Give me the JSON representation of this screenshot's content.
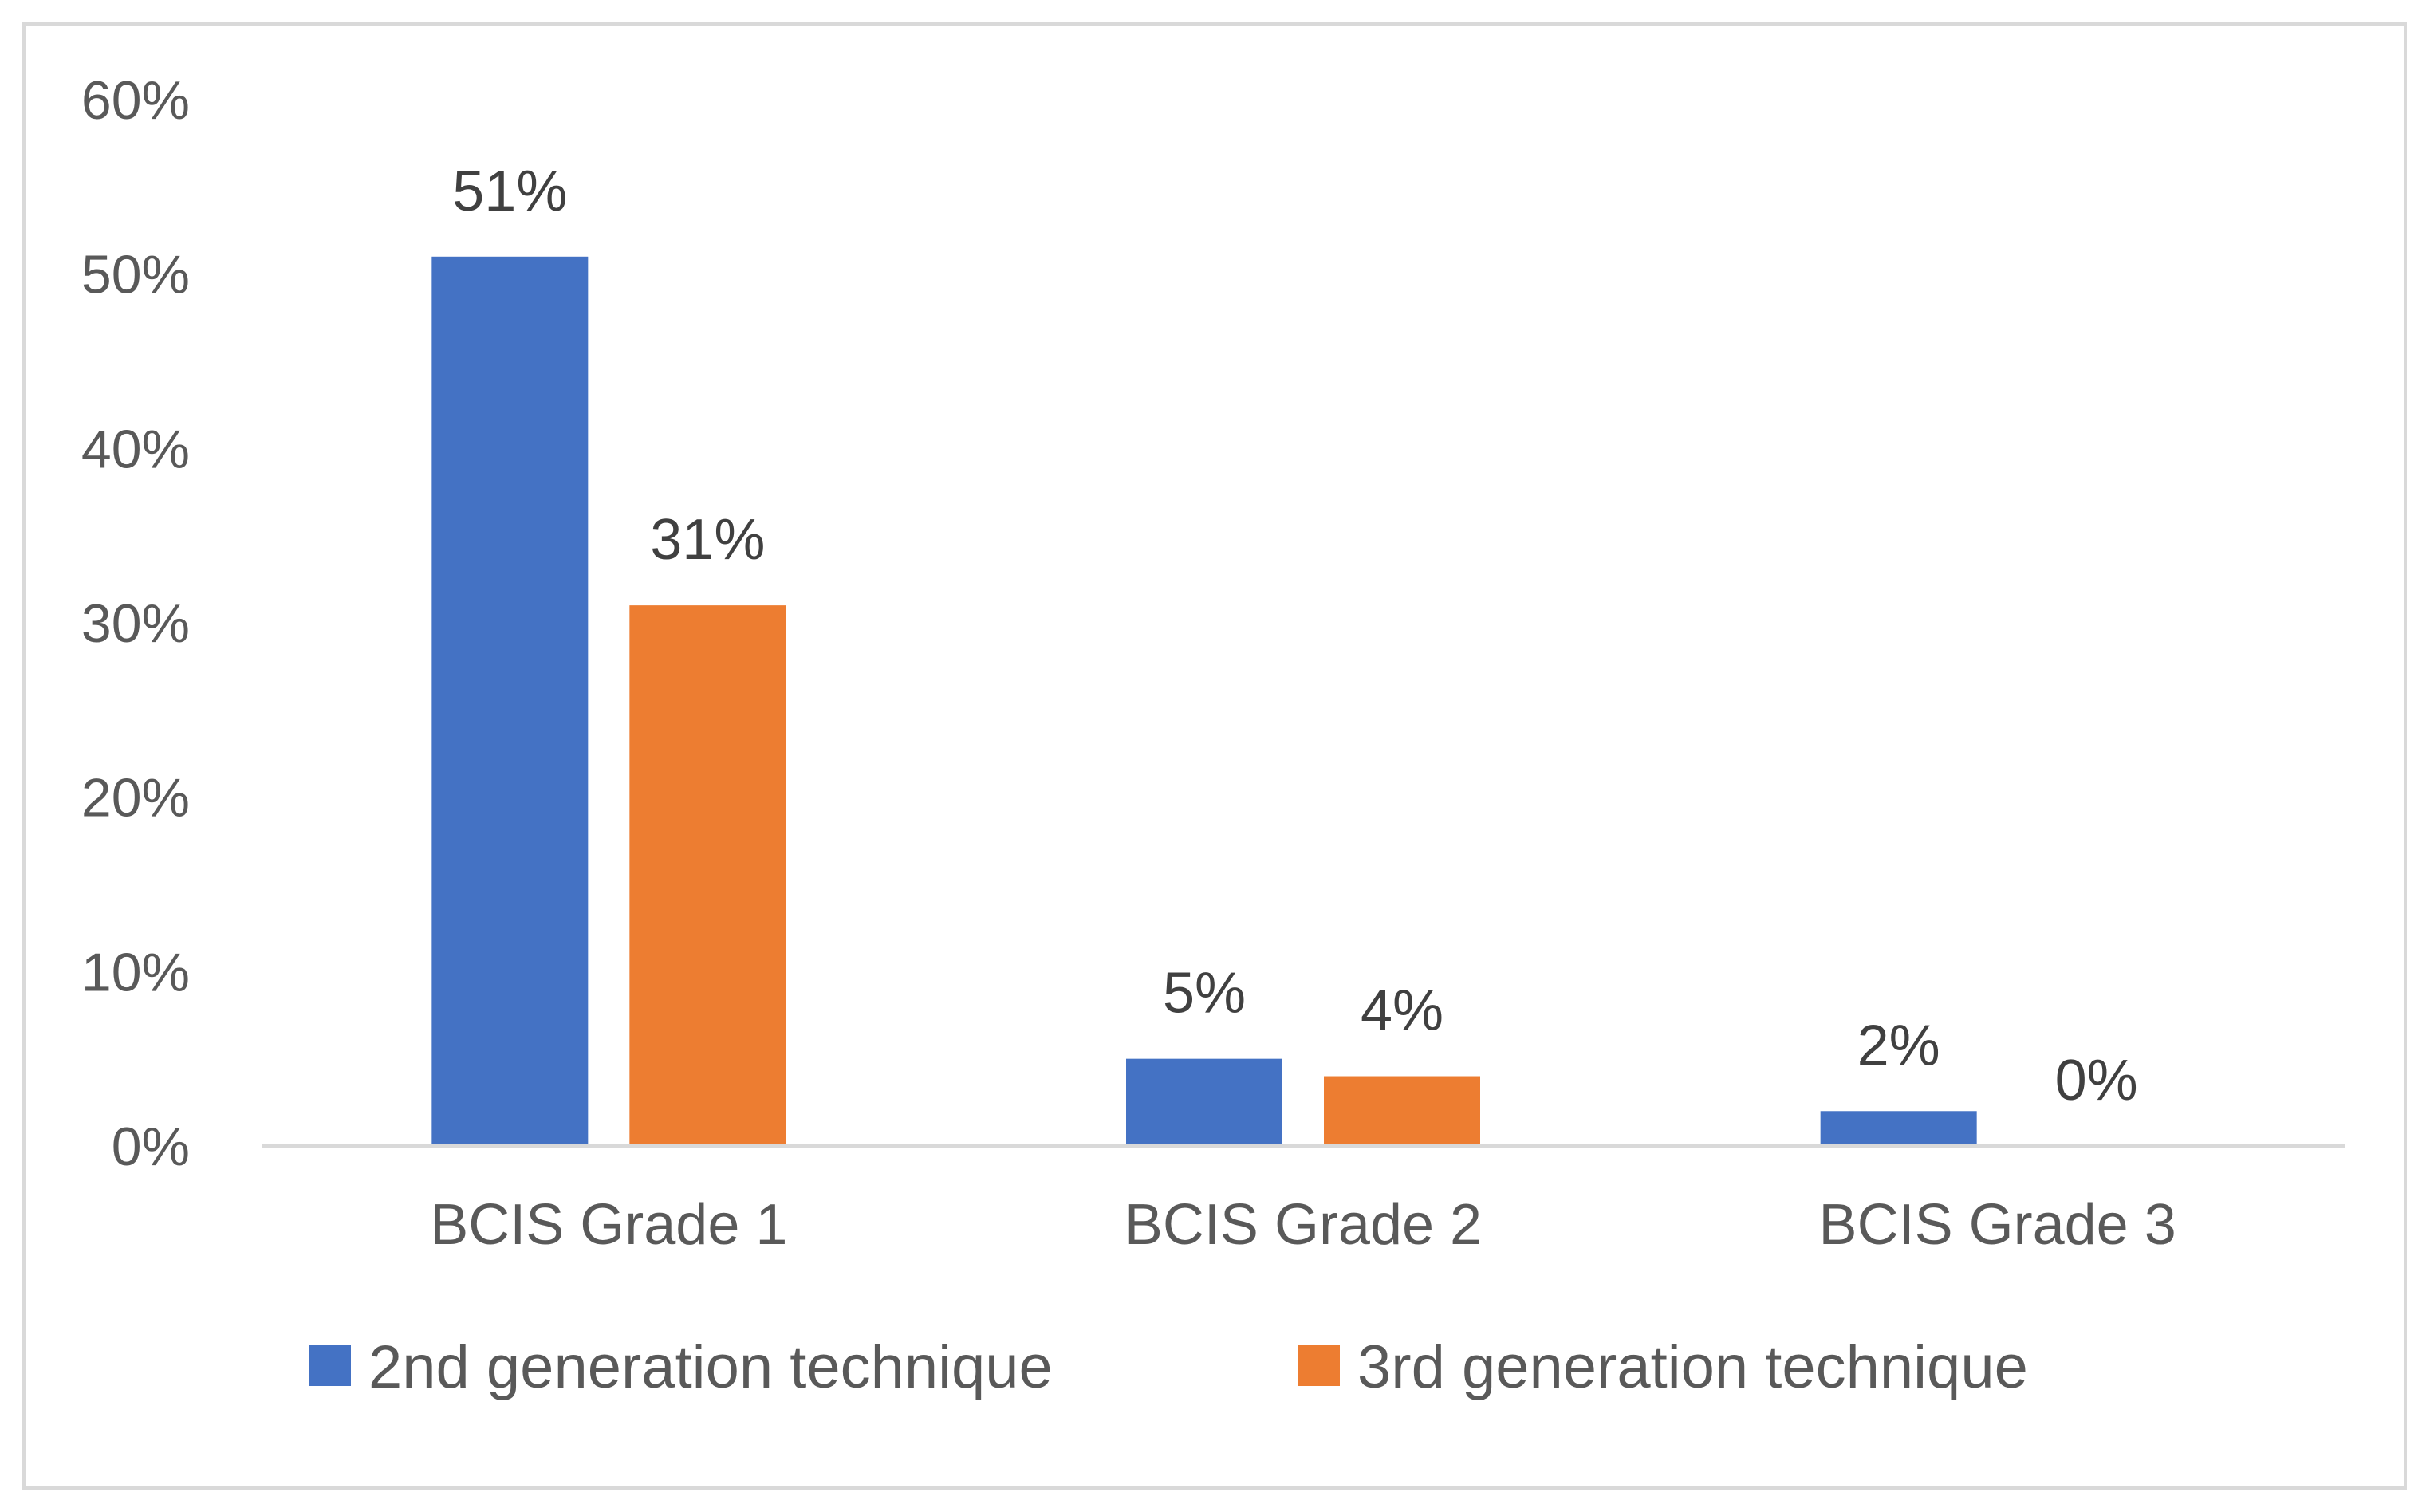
{
  "chart_data": {
    "type": "bar",
    "title": "",
    "xlabel": "",
    "ylabel": "",
    "categories": [
      "BCIS Grade 1",
      "BCIS Grade 2",
      "BCIS Grade 3"
    ],
    "series": [
      {
        "name": "2nd generation technique",
        "color": "#4472C4",
        "values": [
          51,
          5,
          2
        ],
        "labels": [
          "51%",
          "5%",
          "2%"
        ]
      },
      {
        "name": "3rd generation technique",
        "color": "#ED7D31",
        "values": [
          31,
          4,
          0
        ],
        "labels": [
          "31%",
          "4%",
          "0%"
        ]
      }
    ],
    "ylim": [
      0,
      60
    ],
    "yticks": [
      0,
      10,
      20,
      30,
      40,
      50,
      60
    ],
    "ytick_labels": [
      "0%",
      "10%",
      "20%",
      "30%",
      "40%",
      "50%",
      "60%"
    ],
    "grid": false,
    "legend_position": "bottom",
    "axis_color": "#d9d9d9"
  }
}
